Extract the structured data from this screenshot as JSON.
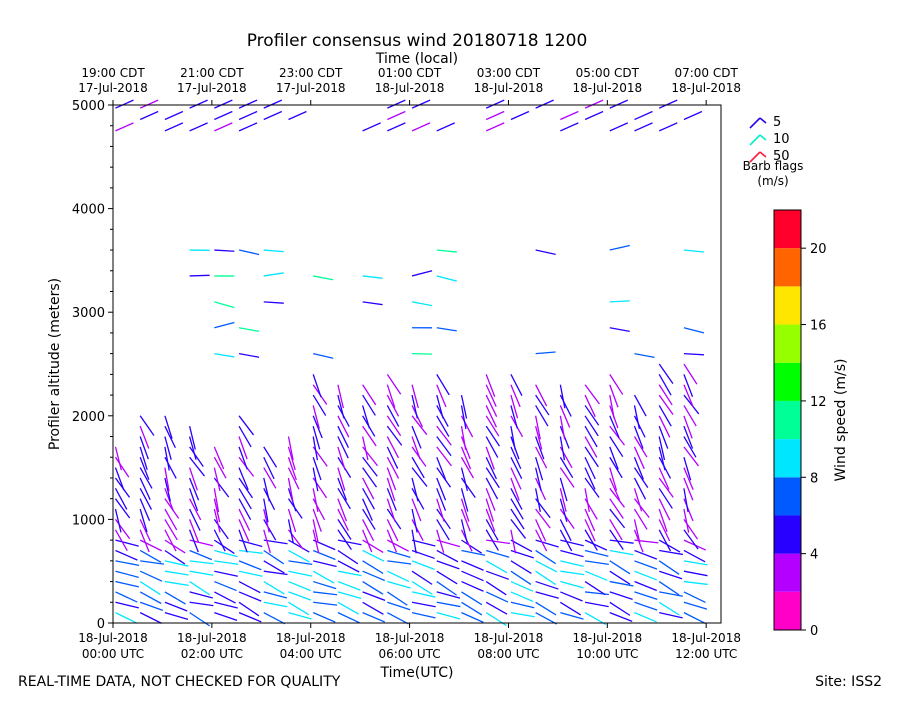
{
  "title": "Profiler consensus wind 20180718 1200",
  "footer_left": "REAL-TIME DATA, NOT CHECKED FOR QUALITY",
  "footer_right": "Site: ISS2",
  "chart_data": {
    "type": "scatter",
    "subtype": "wind-barb profile",
    "title": "Profiler consensus wind 20180718 1200",
    "xlabel": "Time(UTC)",
    "xlabel_top": "Time (local)",
    "ylabel": "Profiler altitude (meters)",
    "ylim": [
      0,
      5000
    ],
    "yticks": [
      0,
      1000,
      2000,
      3000,
      4000,
      5000
    ],
    "xlim_hours_utc": [
      0,
      12.3
    ],
    "xticks_bottom": [
      {
        "hour": 0,
        "line1": "18-Jul-2018",
        "line2": "00:00 UTC"
      },
      {
        "hour": 2,
        "line1": "18-Jul-2018",
        "line2": "02:00 UTC"
      },
      {
        "hour": 4,
        "line1": "18-Jul-2018",
        "line2": "04:00 UTC"
      },
      {
        "hour": 6,
        "line1": "18-Jul-2018",
        "line2": "06:00 UTC"
      },
      {
        "hour": 8,
        "line1": "18-Jul-2018",
        "line2": "08:00 UTC"
      },
      {
        "hour": 10,
        "line1": "18-Jul-2018",
        "line2": "10:00 UTC"
      },
      {
        "hour": 12,
        "line1": "18-Jul-2018",
        "line2": "12:00 UTC"
      }
    ],
    "xticks_top": [
      {
        "hour": 0,
        "line1": "19:00 CDT",
        "line2": "17-Jul-2018"
      },
      {
        "hour": 2,
        "line1": "21:00 CDT",
        "line2": "17-Jul-2018"
      },
      {
        "hour": 4,
        "line1": "23:00 CDT",
        "line2": "17-Jul-2018"
      },
      {
        "hour": 6,
        "line1": "01:00 CDT",
        "line2": "18-Jul-2018"
      },
      {
        "hour": 8,
        "line1": "03:00 CDT",
        "line2": "18-Jul-2018"
      },
      {
        "hour": 10,
        "line1": "05:00 CDT",
        "line2": "18-Jul-2018"
      },
      {
        "hour": 12,
        "line1": "07:00 CDT",
        "line2": "18-Jul-2018"
      }
    ],
    "barb_legend": {
      "title_line1": "Barb flags",
      "title_line2": "(m/s)",
      "entries": [
        {
          "label": "5",
          "color": "#2a00f0"
        },
        {
          "label": "10",
          "color": "#00f0c8"
        },
        {
          "label": "50",
          "color": "#ff1a3c"
        }
      ]
    },
    "colorbar": {
      "label": "Wind speed (m/s)",
      "min": 0,
      "max": 22,
      "ticks": [
        0,
        4,
        8,
        12,
        16,
        20
      ],
      "colors": [
        "#ff00c8",
        "#b400ff",
        "#2800ff",
        "#005aff",
        "#00e6ff",
        "#00ff96",
        "#00ff00",
        "#96ff00",
        "#ffe600",
        "#ff6400",
        "#ff002d"
      ]
    },
    "grid": false
  }
}
